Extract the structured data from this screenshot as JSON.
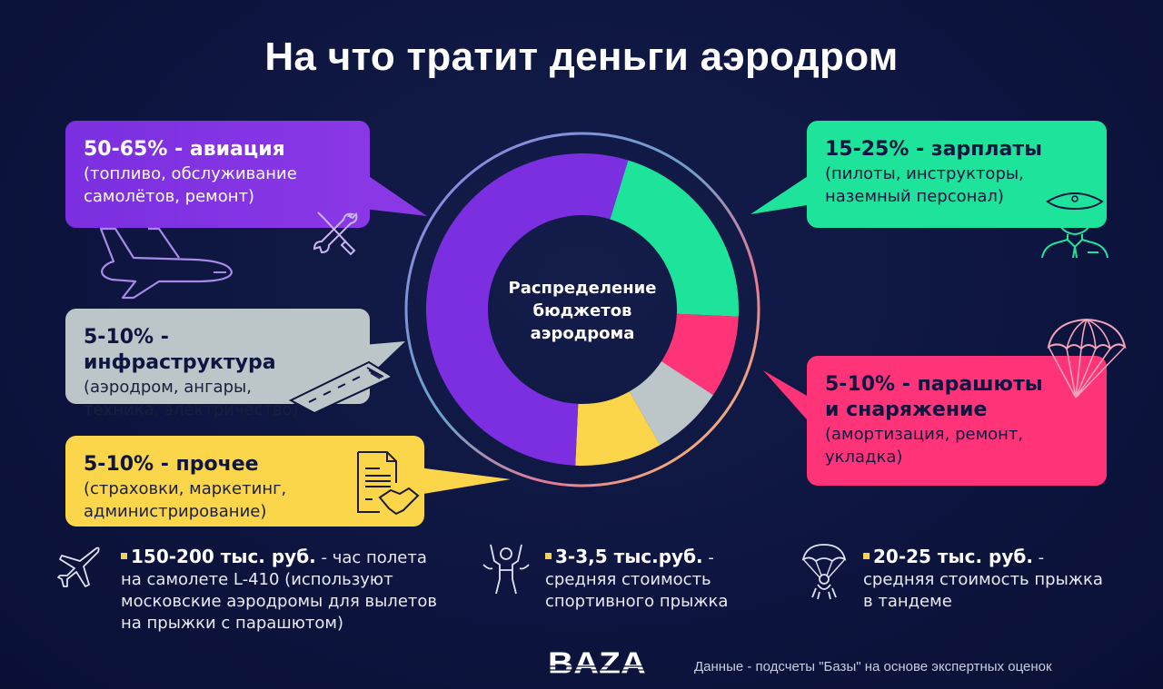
{
  "title": "На что тратит деньги аэродром",
  "center_label": [
    "Распределение",
    "бюджетов",
    "аэродрома"
  ],
  "categories": {
    "aviation": {
      "head": "50-65% - авиация",
      "sub": [
        "(топливо, обслуживание",
        "самолётов, ремонт)"
      ],
      "color": "#7b2fe0"
    },
    "salary": {
      "head": "15-25% - зарплаты",
      "sub": [
        "(пилоты, инструкторы,",
        "наземный персонал)"
      ],
      "color": "#1ee39a"
    },
    "infrastructure": {
      "head": "5-10% - инфраструктура",
      "sub": [
        "(аэродром, ангары,",
        "техника, электричество)"
      ],
      "color": "#bcc6c9"
    },
    "other": {
      "head": "5-10% - прочее",
      "sub": [
        "(страховки, маркетинг,",
        "администрирование)"
      ],
      "color": "#fcd64a"
    },
    "parachutes": {
      "head": [
        "5-10% - парашюты",
        "и снаряжение"
      ],
      "sub": [
        "(амортизация, ремонт,",
        "укладка)"
      ],
      "color": "#ff3478"
    }
  },
  "facts": [
    {
      "value": "150-200 тыс. руб.",
      "text_first": " - час полета",
      "lines": [
        "на самолете L-410 (используют",
        "московские аэродромы для вылетов",
        "на прыжки с парашютом)"
      ],
      "icon": "airplane-icon"
    },
    {
      "value": "3-3,5 тыс.руб.",
      "text_first": " -",
      "lines": [
        "средняя стоимость",
        "спортивного прыжка"
      ],
      "icon": "skydiver-icon"
    },
    {
      "value": "20-25 тыс. руб.",
      "text_first": " -",
      "lines": [
        "средняя стоимость прыжка",
        "в тандеме"
      ],
      "icon": "tandem-parachute-icon"
    }
  ],
  "logo": "BAZA",
  "source": "Данные - подсчеты \"Базы\" на основе экспертных оценок",
  "chart_data": {
    "type": "pie",
    "subtype": "donut",
    "title": "Распределение бюджетов аэродрома",
    "categories": [
      "авиация",
      "зарплаты",
      "парашюты и снаряжение",
      "инфраструктура",
      "прочее"
    ],
    "ranges": [
      "50-65%",
      "15-25%",
      "5-10%",
      "5-10%",
      "5-10%"
    ],
    "values": [
      54,
      21,
      8.5,
      7.5,
      9
    ],
    "colors": [
      "#7b2fe0",
      "#1ee39a",
      "#ff3478",
      "#bcc6c9",
      "#fcd64a"
    ],
    "legend_position": "callouts"
  }
}
